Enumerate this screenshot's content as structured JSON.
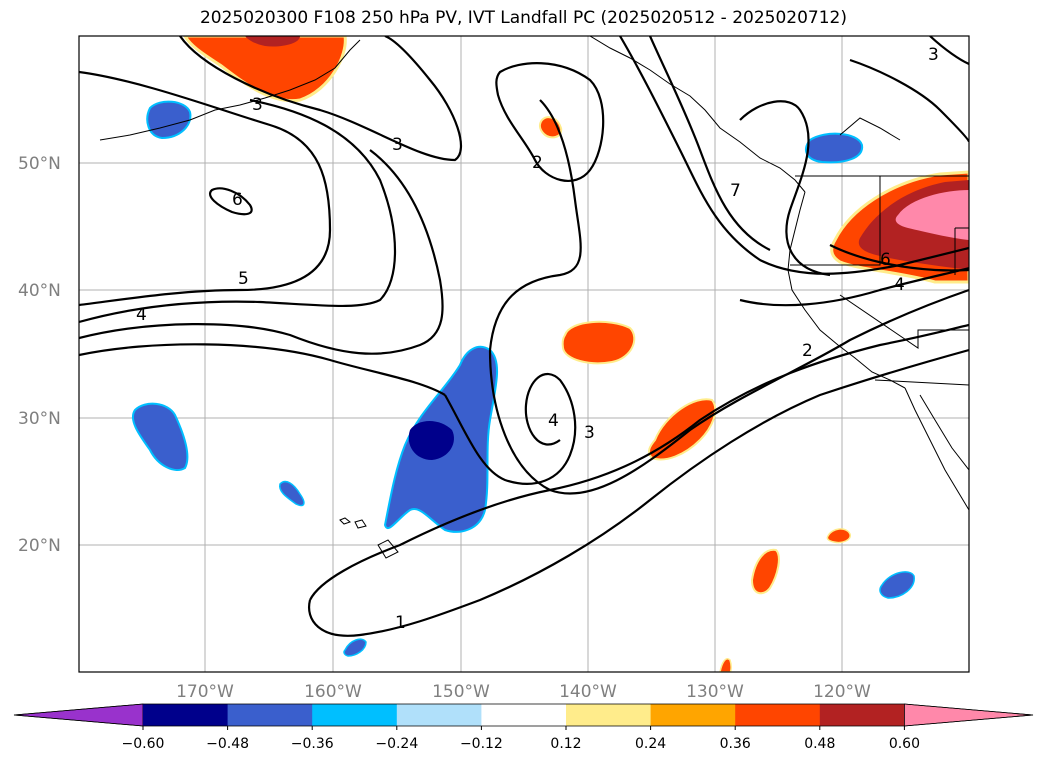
{
  "title": "2025020300 F108 250 hPa PV, IVT Landfall PC (2025020512 - 2025020712)",
  "map": {
    "lat_labels": [
      "50°N",
      "40°N",
      "30°N",
      "20°N"
    ],
    "lon_labels": [
      "170°W",
      "160°W",
      "150°W",
      "140°W",
      "130°W",
      "120°W"
    ],
    "contour_labels": [
      "3",
      "3",
      "6",
      "5",
      "4",
      "2",
      "7",
      "6",
      "4",
      "2",
      "4",
      "3",
      "1",
      "3"
    ]
  },
  "colorbar": {
    "ticks": [
      "−0.60",
      "−0.48",
      "−0.36",
      "−0.24",
      "−0.12",
      "0.12",
      "0.24",
      "0.36",
      "0.48",
      "0.60"
    ],
    "colors": [
      "#9932cc",
      "#00008b",
      "#3a5fcd",
      "#00bfff",
      "#b0e0fa",
      "#ffffff",
      "#ffec8b",
      "#ffa500",
      "#ff4500",
      "#b22222",
      "#ff88aa"
    ]
  }
}
